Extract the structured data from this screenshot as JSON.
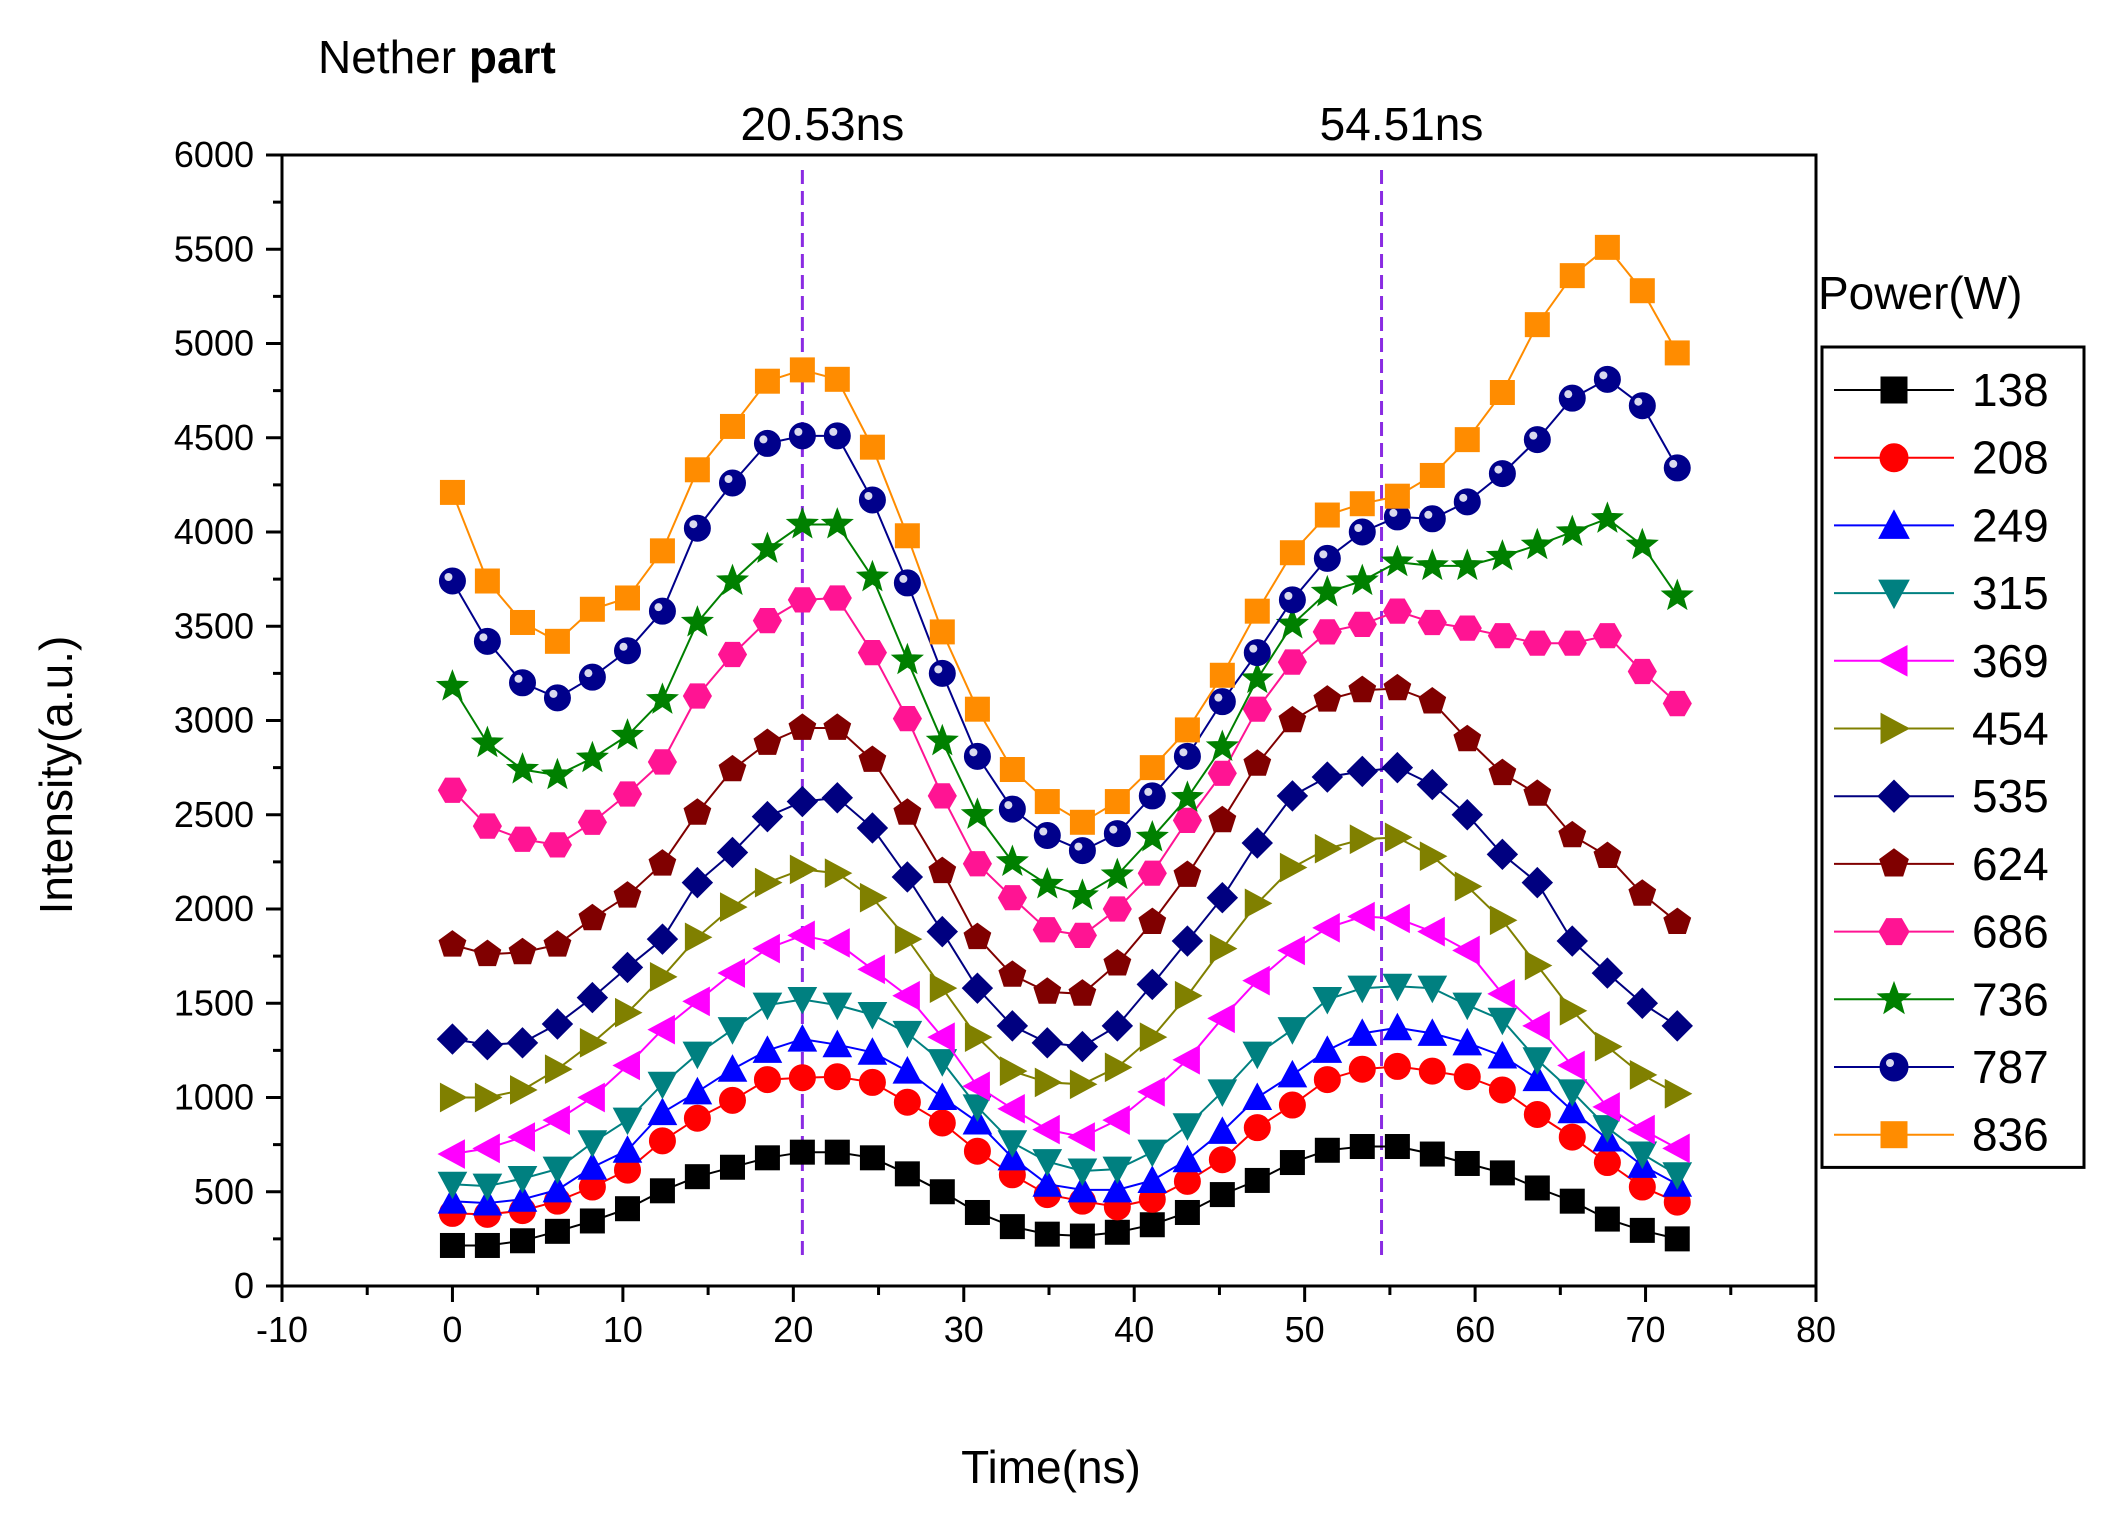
{
  "title": {
    "plain": "Nether ",
    "bold": "part"
  },
  "chart_data": {
    "type": "line",
    "xlabel": "Time(ns)",
    "ylabel": "Intensity(a.u.)",
    "xlim": [
      -10,
      80
    ],
    "ylim": [
      0,
      6000
    ],
    "xticks": [
      -10,
      0,
      10,
      20,
      30,
      40,
      50,
      60,
      70,
      80
    ],
    "yticks": [
      0,
      500,
      1000,
      1500,
      2000,
      2500,
      3000,
      3500,
      4000,
      4500,
      5000,
      5500,
      6000
    ],
    "x": [
      0,
      2.05,
      4.11,
      6.16,
      8.21,
      10.27,
      12.32,
      14.37,
      16.43,
      18.48,
      20.53,
      22.58,
      24.64,
      26.69,
      28.74,
      30.8,
      32.85,
      34.9,
      36.96,
      39.01,
      41.06,
      43.12,
      45.17,
      47.22,
      49.28,
      51.33,
      53.38,
      55.44,
      57.49,
      59.54,
      61.6,
      63.65,
      65.7,
      67.76,
      69.81,
      71.86
    ],
    "vlines": [
      {
        "x": 20.53,
        "label": "20.53ns"
      },
      {
        "x": 54.51,
        "label": "54.51ns"
      }
    ],
    "legend_title": "Power(W)",
    "legend_position": "right",
    "series": [
      {
        "name": "138",
        "color": "#000000",
        "marker": "square",
        "values": [
          215,
          215,
          240,
          290,
          345,
          410,
          505,
          580,
          630,
          680,
          710,
          710,
          680,
          595,
          500,
          390,
          315,
          275,
          265,
          285,
          325,
          390,
          485,
          560,
          655,
          720,
          740,
          740,
          700,
          650,
          600,
          520,
          450,
          355,
          295,
          250
        ]
      },
      {
        "name": "208",
        "color": "#ff0000",
        "marker": "circle",
        "values": [
          385,
          380,
          400,
          450,
          525,
          615,
          770,
          890,
          985,
          1095,
          1105,
          1110,
          1080,
          975,
          865,
          715,
          590,
          485,
          450,
          420,
          460,
          555,
          670,
          840,
          960,
          1095,
          1150,
          1165,
          1140,
          1110,
          1040,
          910,
          790,
          655,
          525,
          445
        ]
      },
      {
        "name": "249",
        "color": "#0000ff",
        "marker": "triangle-up",
        "values": [
          450,
          440,
          460,
          510,
          630,
          720,
          920,
          1030,
          1150,
          1250,
          1310,
          1280,
          1240,
          1140,
          1000,
          870,
          680,
          540,
          510,
          510,
          560,
          670,
          820,
          1000,
          1120,
          1250,
          1340,
          1370,
          1340,
          1290,
          1220,
          1100,
          930,
          780,
          640,
          540
        ]
      },
      {
        "name": "315",
        "color": "#008080",
        "marker": "triangle-down",
        "values": [
          540,
          530,
          570,
          620,
          760,
          880,
          1070,
          1230,
          1360,
          1490,
          1520,
          1490,
          1440,
          1340,
          1190,
          950,
          760,
          660,
          610,
          620,
          710,
          850,
          1030,
          1230,
          1360,
          1520,
          1580,
          1590,
          1580,
          1490,
          1410,
          1200,
          1030,
          840,
          700,
          590
        ]
      },
      {
        "name": "369",
        "color": "#ff00ff",
        "marker": "triangle-left",
        "values": [
          700,
          730,
          790,
          880,
          1000,
          1170,
          1360,
          1510,
          1660,
          1790,
          1860,
          1820,
          1680,
          1540,
          1320,
          1060,
          940,
          830,
          790,
          880,
          1030,
          1200,
          1420,
          1620,
          1780,
          1900,
          1960,
          1950,
          1880,
          1780,
          1550,
          1380,
          1170,
          950,
          830,
          730
        ]
      },
      {
        "name": "454",
        "color": "#808000",
        "marker": "triangle-right",
        "values": [
          1000,
          1000,
          1040,
          1150,
          1290,
          1450,
          1640,
          1850,
          2010,
          2140,
          2210,
          2190,
          2060,
          1840,
          1580,
          1320,
          1140,
          1080,
          1070,
          1160,
          1320,
          1540,
          1790,
          2030,
          2220,
          2320,
          2370,
          2380,
          2280,
          2120,
          1940,
          1700,
          1460,
          1270,
          1120,
          1020
        ]
      },
      {
        "name": "535",
        "color": "#000080",
        "marker": "diamond",
        "values": [
          1310,
          1280,
          1290,
          1390,
          1530,
          1690,
          1840,
          2140,
          2300,
          2490,
          2570,
          2590,
          2430,
          2170,
          1880,
          1580,
          1380,
          1290,
          1270,
          1380,
          1600,
          1830,
          2060,
          2350,
          2600,
          2700,
          2730,
          2750,
          2660,
          2500,
          2290,
          2140,
          1830,
          1660,
          1500,
          1380
        ]
      },
      {
        "name": "624",
        "color": "#800000",
        "marker": "pentagon",
        "values": [
          1810,
          1760,
          1770,
          1810,
          1950,
          2070,
          2240,
          2510,
          2740,
          2880,
          2960,
          2960,
          2790,
          2510,
          2200,
          1850,
          1650,
          1560,
          1550,
          1710,
          1930,
          2180,
          2470,
          2770,
          3000,
          3110,
          3160,
          3170,
          3100,
          2900,
          2720,
          2610,
          2390,
          2280,
          2080,
          1930
        ]
      },
      {
        "name": "686",
        "color": "#ff1493",
        "marker": "hexagon",
        "values": [
          2630,
          2440,
          2370,
          2340,
          2460,
          2610,
          2780,
          3130,
          3350,
          3530,
          3640,
          3650,
          3360,
          3010,
          2600,
          2240,
          2060,
          1890,
          1860,
          2000,
          2190,
          2470,
          2720,
          3060,
          3310,
          3470,
          3510,
          3580,
          3520,
          3490,
          3450,
          3410,
          3410,
          3450,
          3260,
          3090
        ]
      },
      {
        "name": "736",
        "color": "#008000",
        "marker": "star",
        "values": [
          3180,
          2880,
          2740,
          2710,
          2800,
          2920,
          3110,
          3520,
          3740,
          3910,
          4040,
          4040,
          3760,
          3320,
          2890,
          2500,
          2250,
          2130,
          2070,
          2180,
          2380,
          2590,
          2860,
          3220,
          3510,
          3680,
          3740,
          3840,
          3820,
          3820,
          3870,
          3930,
          4000,
          4070,
          3930,
          3660
        ]
      },
      {
        "name": "787",
        "color": "#00008b",
        "marker": "sphere",
        "values": [
          3740,
          3420,
          3200,
          3120,
          3230,
          3370,
          3580,
          4020,
          4260,
          4470,
          4510,
          4510,
          4170,
          3730,
          3250,
          2810,
          2530,
          2390,
          2310,
          2400,
          2600,
          2810,
          3100,
          3360,
          3640,
          3860,
          4000,
          4080,
          4070,
          4160,
          4310,
          4490,
          4710,
          4810,
          4670,
          4340
        ]
      },
      {
        "name": "836",
        "color": "#ff8c00",
        "marker": "square",
        "values": [
          4210,
          3740,
          3520,
          3420,
          3590,
          3650,
          3900,
          4330,
          4560,
          4800,
          4860,
          4810,
          4450,
          3980,
          3470,
          3060,
          2740,
          2570,
          2460,
          2570,
          2750,
          2950,
          3240,
          3580,
          3890,
          4090,
          4150,
          4190,
          4300,
          4490,
          4740,
          5100,
          5360,
          5510,
          5280,
          4950
        ]
      }
    ]
  }
}
